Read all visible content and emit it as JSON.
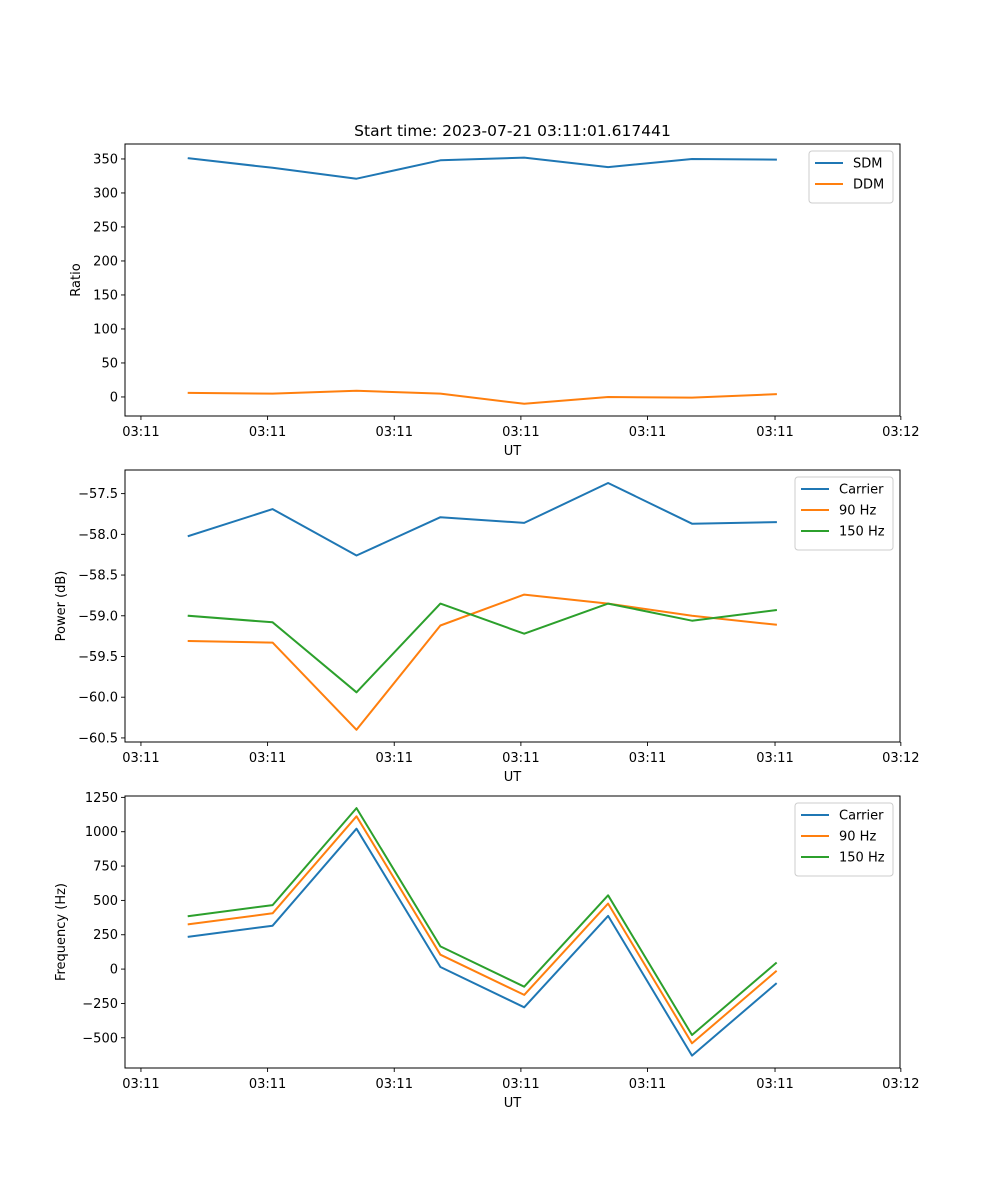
{
  "title": "Start time: 2023-07-21 03:11:01.617441",
  "chart_data": [
    {
      "type": "line",
      "xlabel": "UT",
      "ylabel": "Ratio",
      "x": [
        1,
        2,
        3,
        4,
        5,
        6,
        7,
        8
      ],
      "xlim": [
        0.24,
        9.48
      ],
      "xticks": [
        0.43,
        1.94,
        3.45,
        4.96,
        6.47,
        7.99,
        9.49
      ],
      "xtick_labels": [
        "03:11",
        "03:11",
        "03:11",
        "03:11",
        "03:11",
        "03:11",
        "03:12"
      ],
      "ylim": [
        -28,
        372
      ],
      "yticks": [
        0,
        50,
        100,
        150,
        200,
        250,
        300,
        350
      ],
      "ytick_labels": [
        "0",
        "50",
        "100",
        "150",
        "200",
        "250",
        "300",
        "350"
      ],
      "legend_position": "top-right",
      "series": [
        {
          "name": "SDM",
          "color": "#1f77b4",
          "values": [
            351,
            337,
            321,
            348,
            352,
            338,
            350,
            349
          ]
        },
        {
          "name": "DDM",
          "color": "#ff7f0e",
          "values": [
            6,
            5,
            9,
            5,
            -10,
            0,
            -1,
            4
          ]
        }
      ]
    },
    {
      "type": "line",
      "xlabel": "UT",
      "ylabel": "Power (dB)",
      "x": [
        1,
        2,
        3,
        4,
        5,
        6,
        7,
        8
      ],
      "xlim": [
        0.24,
        9.48
      ],
      "xticks": [
        0.43,
        1.94,
        3.45,
        4.96,
        6.47,
        7.99,
        9.49
      ],
      "xtick_labels": [
        "03:11",
        "03:11",
        "03:11",
        "03:11",
        "03:11",
        "03:11",
        "03:12"
      ],
      "ylim": [
        -60.55,
        -57.21
      ],
      "yticks": [
        -60.5,
        -60.0,
        -59.5,
        -59.0,
        -58.5,
        -58.0,
        -57.5
      ],
      "ytick_labels": [
        "−60.5",
        "−60.0",
        "−59.5",
        "−59.0",
        "−58.5",
        "−58.0",
        "−57.5"
      ],
      "legend_position": "top-right",
      "series": [
        {
          "name": "Carrier",
          "color": "#1f77b4",
          "values": [
            -58.02,
            -57.69,
            -58.26,
            -57.79,
            -57.86,
            -57.37,
            -57.87,
            -57.85
          ]
        },
        {
          "name": "90 Hz",
          "color": "#ff7f0e",
          "values": [
            -59.31,
            -59.33,
            -60.4,
            -59.12,
            -58.74,
            -58.85,
            -59.0,
            -59.11
          ]
        },
        {
          "name": "150 Hz",
          "color": "#2ca02c",
          "values": [
            -59.0,
            -59.08,
            -59.94,
            -58.85,
            -59.22,
            -58.85,
            -59.06,
            -58.93
          ]
        }
      ]
    },
    {
      "type": "line",
      "xlabel": "UT",
      "ylabel": "Frequency (Hz)",
      "x": [
        1,
        2,
        3,
        4,
        5,
        6,
        7,
        8
      ],
      "xlim": [
        0.24,
        9.48
      ],
      "xticks": [
        0.43,
        1.94,
        3.45,
        4.96,
        6.47,
        7.99,
        9.49
      ],
      "xtick_labels": [
        "03:11",
        "03:11",
        "03:11",
        "03:11",
        "03:11",
        "03:11",
        "03:12"
      ],
      "ylim": [
        -720,
        1260
      ],
      "yticks": [
        -500,
        -250,
        0,
        250,
        500,
        750,
        1000,
        1250
      ],
      "ytick_labels": [
        "−500",
        "−250",
        "0",
        "250",
        "500",
        "750",
        "1000",
        "1250"
      ],
      "legend_position": "top-right",
      "series": [
        {
          "name": "Carrier",
          "color": "#1f77b4",
          "values": [
            236,
            316,
            1022,
            15,
            -278,
            387,
            -630,
            -107
          ]
        },
        {
          "name": "90 Hz",
          "color": "#ff7f0e",
          "values": [
            326,
            406,
            1112,
            105,
            -188,
            477,
            -540,
            -17
          ]
        },
        {
          "name": "150 Hz",
          "color": "#2ca02c",
          "values": [
            386,
            466,
            1172,
            165,
            -128,
            537,
            -480,
            43
          ]
        }
      ]
    }
  ]
}
